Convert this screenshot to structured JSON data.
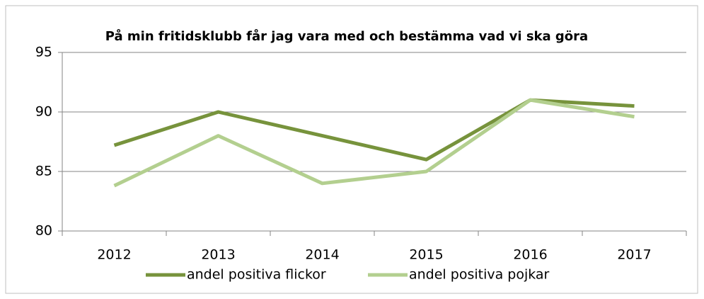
{
  "chart_data": {
    "type": "line",
    "title": "På min fritidsklubb får jag vara med och bestämma vad vi ska göra",
    "categories": [
      "2012",
      "2013",
      "2014",
      "2015",
      "2016",
      "2017"
    ],
    "series": [
      {
        "name": "andel positiva flickor",
        "color": "#77933c",
        "values": [
          87.2,
          90,
          88,
          86,
          91,
          90.5
        ]
      },
      {
        "name": "andel positiva pojkar",
        "color": "#b3cf8f",
        "values": [
          83.8,
          88,
          84,
          85,
          91,
          89.6
        ]
      }
    ],
    "ylim": [
      80,
      95
    ],
    "yticks": [
      80,
      85,
      90,
      95
    ],
    "grid": true,
    "legend": "bottom"
  }
}
